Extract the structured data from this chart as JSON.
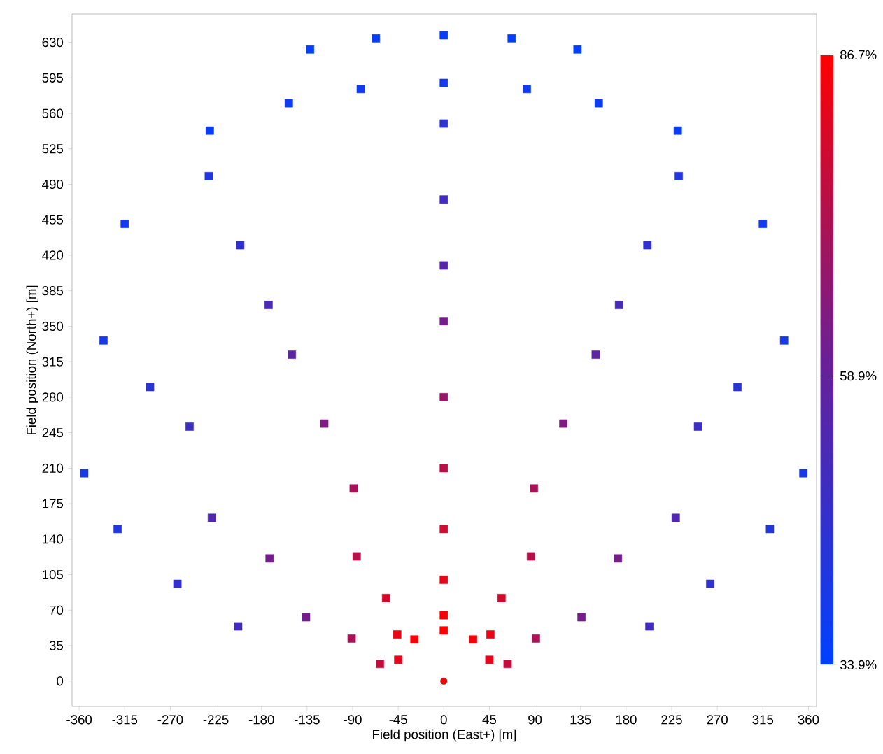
{
  "chart_data": {
    "type": "scatter",
    "xlabel": "Field position (East+) [m]",
    "ylabel": "Field position (North+) [m]",
    "xlim": [
      -367,
      368
    ],
    "ylim": [
      -25,
      658
    ],
    "xticks": [
      -360,
      -315,
      -270,
      -225,
      -180,
      -135,
      -90,
      -45,
      0,
      45,
      90,
      135,
      180,
      225,
      270,
      315,
      360
    ],
    "yticks": [
      0,
      35,
      70,
      105,
      140,
      175,
      210,
      245,
      280,
      315,
      350,
      385,
      420,
      455,
      490,
      525,
      560,
      595,
      630
    ],
    "clim": [
      33.9,
      86.7
    ],
    "cticks": [
      {
        "value": 33.9,
        "label": "33.9%"
      },
      {
        "value": 58.9,
        "label": "58.9%"
      },
      {
        "value": 86.7,
        "label": "86.7%"
      }
    ],
    "series": [
      {
        "marker": "square",
        "x": [
          -45,
          -29,
          0,
          29,
          45,
          -63,
          -46,
          0,
          46,
          63,
          -91,
          -57,
          0,
          57,
          91,
          -136,
          -86,
          0,
          86,
          136,
          -203,
          -172,
          -89,
          0,
          89,
          172,
          203,
          -263,
          -229,
          -118,
          0,
          118,
          229,
          263,
          -322,
          -251,
          -150,
          0,
          150,
          251,
          322,
          -355,
          -290,
          -173,
          0,
          173,
          290,
          355,
          -336,
          -201,
          0,
          201,
          336,
          -315,
          -232,
          0,
          232,
          315,
          -231,
          -153,
          -82,
          0,
          82,
          153,
          231,
          -132,
          -67,
          0,
          67,
          132
        ],
        "values": [
          21,
          41,
          50,
          41,
          21,
          17,
          46,
          65,
          46,
          17,
          42,
          82,
          100,
          82,
          42,
          63,
          123,
          150,
          123,
          63,
          54,
          121,
          190,
          210,
          190,
          121,
          54,
          96,
          161,
          254,
          280,
          254,
          161,
          96,
          150,
          251,
          322,
          355,
          322,
          251,
          150,
          205,
          290,
          371,
          410,
          371,
          290,
          205,
          336,
          430,
          475,
          430,
          336,
          451,
          498,
          550,
          498,
          451,
          543,
          570,
          584,
          590,
          584,
          570,
          543,
          623,
          634,
          637,
          634,
          623
        ],
        "colors": [
          "#e4061b",
          "#f5020a",
          "#fb0104",
          "#f5020a",
          "#e4061b",
          "#c30d3d",
          "#ea0415",
          "#f5020a",
          "#ea0415",
          "#c30d3d",
          "#ac1254",
          "#d3092c",
          "#e4061b",
          "#d3092c",
          "#ac1254",
          "#741e8c",
          "#b70f48",
          "#ce0b32",
          "#b70f48",
          "#741e8c",
          "#412cbf",
          "#741e8c",
          "#a61359",
          "#b70f48",
          "#a61359",
          "#741e8c",
          "#412cbf",
          "#3131cf",
          "#5128af",
          "#7f1c81",
          "#96176a",
          "#7f1c81",
          "#5128af",
          "#3131cf",
          "#2136df",
          "#3d2ec3",
          "#5d24a3",
          "#741e8c",
          "#5d24a3",
          "#3d2ec3",
          "#2136df",
          "#1839e7",
          "#2934d7",
          "#492ab7",
          "#5925a7",
          "#492ab7",
          "#2934d7",
          "#1839e7",
          "#1839e7",
          "#3131cf",
          "#412cbf",
          "#3131cf",
          "#1839e7",
          "#103bef",
          "#2136df",
          "#2d33d3",
          "#2136df",
          "#103bef",
          "#083df7",
          "#0c3cf3",
          "#103bef",
          "#143aeb",
          "#103bef",
          "#0c3cf3",
          "#083df7",
          "#043ffb",
          "#083df7",
          "#083df7",
          "#083df7",
          "#043ffb"
        ],
        "cvalues": [
          82,
          85,
          86,
          85,
          82,
          76,
          83,
          85,
          83,
          76,
          72,
          79,
          82,
          79,
          72,
          62,
          74,
          78,
          74,
          62,
          50,
          62,
          71,
          74,
          71,
          62,
          50,
          46,
          54,
          64,
          68,
          64,
          54,
          46,
          42,
          49,
          57,
          62,
          57,
          49,
          42,
          40,
          44,
          52,
          56,
          52,
          44,
          40,
          40,
          46,
          50,
          46,
          40,
          38,
          42,
          45,
          42,
          38,
          36,
          37,
          38,
          39,
          38,
          37,
          36,
          35,
          36,
          36,
          36,
          35
        ]
      },
      {
        "marker": "circle",
        "color": "#ff0000",
        "x": [
          0
        ],
        "values": [
          0
        ]
      }
    ]
  }
}
